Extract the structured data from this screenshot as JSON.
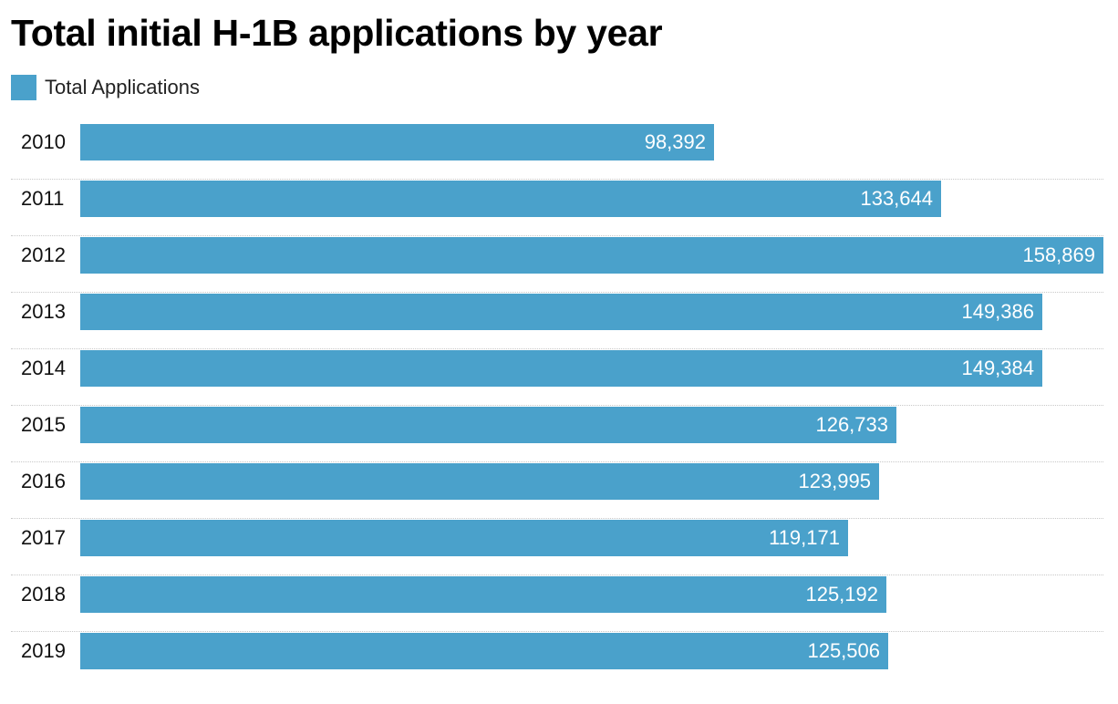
{
  "colors": {
    "bar": "#4aa1cb",
    "background": "#ffffff",
    "text": "#000000"
  },
  "chart_data": {
    "type": "bar",
    "orientation": "horizontal",
    "title": "Total initial H-1B applications by year",
    "xlabel": "",
    "ylabel": "",
    "legend_position": "top-left",
    "grid": false,
    "xlim": [
      0,
      158869
    ],
    "categories": [
      "2010",
      "2011",
      "2012",
      "2013",
      "2014",
      "2015",
      "2016",
      "2017",
      "2018",
      "2019"
    ],
    "series": [
      {
        "name": "Total Applications",
        "values": [
          98392,
          133644,
          158869,
          149386,
          149384,
          126733,
          123995,
          119171,
          125192,
          125506
        ],
        "labels": [
          "98,392",
          "133,644",
          "158,869",
          "149,386",
          "149,384",
          "126,733",
          "123,995",
          "119,171",
          "125,192",
          "125,506"
        ]
      }
    ]
  }
}
